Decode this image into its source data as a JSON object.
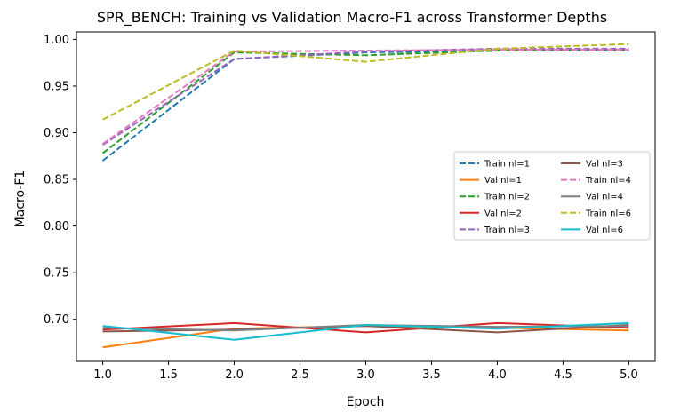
{
  "chart_data": {
    "type": "line",
    "title": "SPR_BENCH: Training vs Validation Macro-F1 across Transformer Depths",
    "xlabel": "Epoch",
    "ylabel": "Macro-F1",
    "xlim": [
      0.8,
      5.2
    ],
    "ylim": [
      0.655,
      1.008
    ],
    "xticks": [
      1.0,
      1.5,
      2.0,
      2.5,
      3.0,
      3.5,
      4.0,
      4.5,
      5.0
    ],
    "xtick_labels": [
      "1.0",
      "1.5",
      "2.0",
      "2.5",
      "3.0",
      "3.5",
      "4.0",
      "4.5",
      "5.0"
    ],
    "yticks": [
      0.7,
      0.75,
      0.8,
      0.85,
      0.9,
      0.95,
      1.0
    ],
    "ytick_labels": [
      "0.70",
      "0.75",
      "0.80",
      "0.85",
      "0.90",
      "0.95",
      "1.00"
    ],
    "grid": false,
    "legend_position": "center-right",
    "x": [
      1,
      2,
      3,
      4,
      5
    ],
    "series": [
      {
        "name": "Train nl=1",
        "color": "#1f77b4",
        "dashed": true,
        "values": [
          0.87,
          0.979,
          0.986,
          0.988,
          0.988
        ]
      },
      {
        "name": "Val nl=1",
        "color": "#ff7f0e",
        "dashed": false,
        "values": [
          0.67,
          0.69,
          0.693,
          0.691,
          0.688
        ]
      },
      {
        "name": "Train nl=2",
        "color": "#2ca02c",
        "dashed": true,
        "values": [
          0.878,
          0.986,
          0.983,
          0.988,
          0.989
        ]
      },
      {
        "name": "Val nl=2",
        "color": "#d62728",
        "dashed": false,
        "values": [
          0.689,
          0.696,
          0.686,
          0.696,
          0.691
        ]
      },
      {
        "name": "Train nl=3",
        "color": "#9467bd",
        "dashed": true,
        "values": [
          0.887,
          0.979,
          0.987,
          0.99,
          0.99
        ]
      },
      {
        "name": "Val nl=3",
        "color": "#8c564b",
        "dashed": false,
        "values": [
          0.687,
          0.689,
          0.693,
          0.686,
          0.694
        ]
      },
      {
        "name": "Train nl=4",
        "color": "#e377c2",
        "dashed": true,
        "values": [
          0.888,
          0.987,
          0.988,
          0.989,
          0.989
        ]
      },
      {
        "name": "Val nl=4",
        "color": "#7f7f7f",
        "dashed": false,
        "values": [
          0.691,
          0.688,
          0.694,
          0.692,
          0.693
        ]
      },
      {
        "name": "Train nl=6",
        "color": "#bcbd22",
        "dashed": true,
        "values": [
          0.914,
          0.988,
          0.976,
          0.99,
          0.995
        ]
      },
      {
        "name": "Val nl=6",
        "color": "#17becf",
        "dashed": false,
        "values": [
          0.693,
          0.678,
          0.694,
          0.69,
          0.696
        ]
      }
    ]
  }
}
